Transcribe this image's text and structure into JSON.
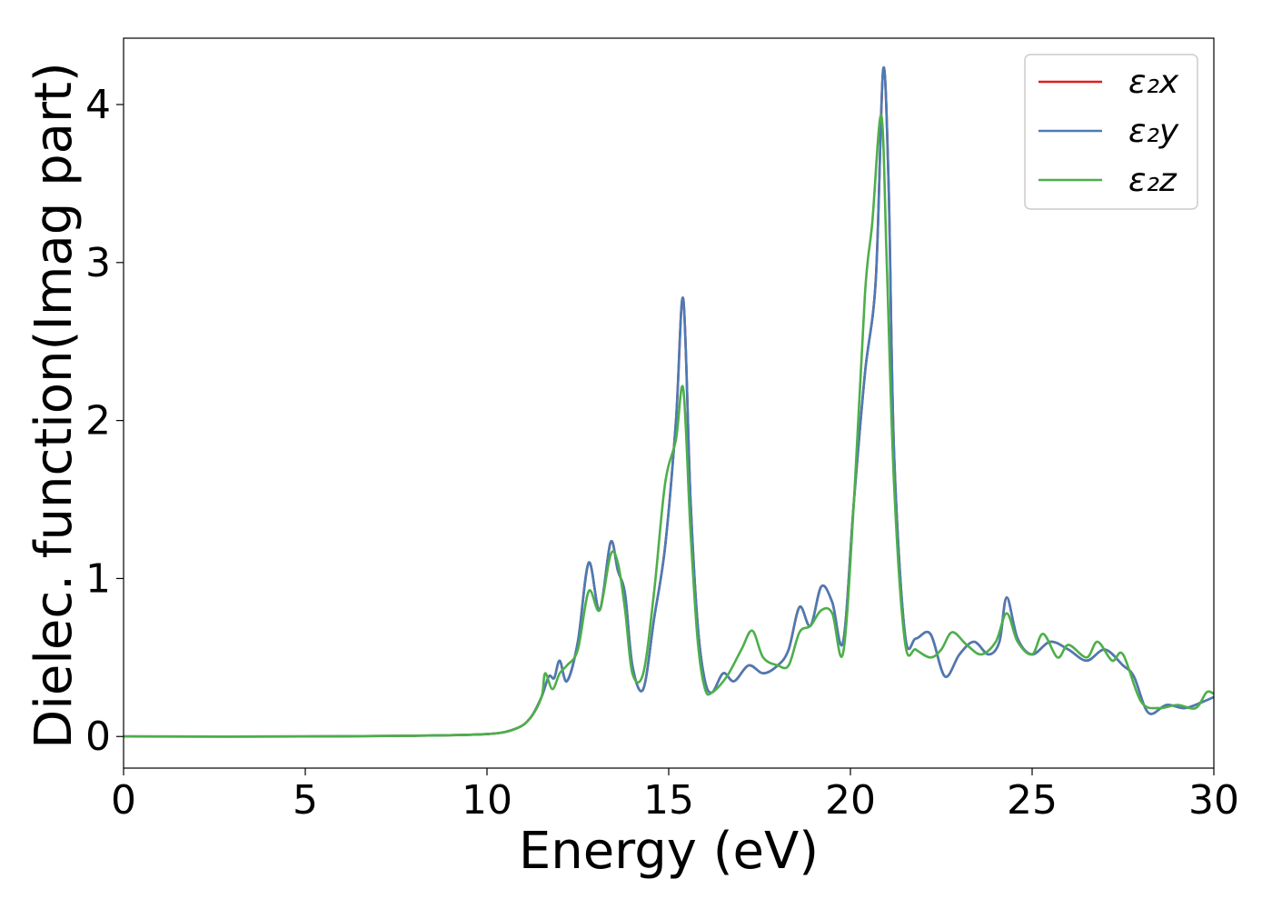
{
  "chart_data": {
    "type": "line",
    "xlabel": "Energy (eV)",
    "ylabel": "Dielec. function(Imag part)",
    "xlim": [
      0,
      30
    ],
    "ylim": [
      -0.2,
      4.42
    ],
    "xticks": [
      0,
      5,
      10,
      15,
      20,
      25,
      30
    ],
    "yticks": [
      0,
      1,
      2,
      3,
      4
    ],
    "grid": false,
    "legend": "top-right",
    "series": [
      {
        "name": "ε₂x",
        "color": "#e41a1c",
        "x": [
          0,
          5,
          8,
          10,
          10.8,
          11.2,
          11.5,
          11.7,
          11.85,
          12.0,
          12.2,
          12.5,
          12.8,
          13.1,
          13.4,
          13.6,
          13.8,
          14.0,
          14.3,
          14.6,
          14.9,
          15.2,
          15.4,
          15.6,
          15.8,
          16.0,
          16.2,
          16.5,
          16.8,
          17.2,
          17.6,
          18.0,
          18.3,
          18.6,
          18.9,
          19.2,
          19.5,
          19.8,
          20.1,
          20.4,
          20.7,
          20.9,
          21.05,
          21.2,
          21.5,
          21.8,
          22.2,
          22.6,
          23.0,
          23.4,
          23.8,
          24.1,
          24.3,
          24.6,
          25.0,
          25.5,
          26.0,
          26.5,
          27.0,
          27.5,
          27.8,
          28.2,
          28.7,
          29.2,
          29.7,
          30
        ],
        "values": [
          0.0,
          0.0,
          0.005,
          0.015,
          0.05,
          0.12,
          0.25,
          0.38,
          0.37,
          0.48,
          0.35,
          0.6,
          1.1,
          0.8,
          1.23,
          1.05,
          0.9,
          0.45,
          0.3,
          0.75,
          1.2,
          2.0,
          2.77,
          1.5,
          0.7,
          0.35,
          0.28,
          0.4,
          0.35,
          0.45,
          0.4,
          0.45,
          0.55,
          0.82,
          0.7,
          0.95,
          0.85,
          0.6,
          1.5,
          2.3,
          2.9,
          4.22,
          3.5,
          1.8,
          0.65,
          0.62,
          0.65,
          0.38,
          0.52,
          0.6,
          0.52,
          0.6,
          0.88,
          0.62,
          0.52,
          0.6,
          0.55,
          0.48,
          0.55,
          0.45,
          0.38,
          0.15,
          0.2,
          0.18,
          0.22,
          0.25
        ]
      },
      {
        "name": "ε₂y",
        "color": "#4a7bb5",
        "x": [
          0,
          5,
          8,
          10,
          10.8,
          11.2,
          11.5,
          11.7,
          11.85,
          12.0,
          12.2,
          12.5,
          12.8,
          13.1,
          13.4,
          13.6,
          13.8,
          14.0,
          14.3,
          14.6,
          14.9,
          15.2,
          15.4,
          15.6,
          15.8,
          16.0,
          16.2,
          16.5,
          16.8,
          17.2,
          17.6,
          18.0,
          18.3,
          18.6,
          18.9,
          19.2,
          19.5,
          19.8,
          20.1,
          20.4,
          20.7,
          20.9,
          21.05,
          21.2,
          21.5,
          21.8,
          22.2,
          22.6,
          23.0,
          23.4,
          23.8,
          24.1,
          24.3,
          24.6,
          25.0,
          25.5,
          26.0,
          26.5,
          27.0,
          27.5,
          27.8,
          28.2,
          28.7,
          29.2,
          29.7,
          30
        ],
        "values": [
          0.0,
          0.0,
          0.005,
          0.015,
          0.05,
          0.12,
          0.25,
          0.38,
          0.37,
          0.48,
          0.35,
          0.6,
          1.1,
          0.8,
          1.23,
          1.05,
          0.9,
          0.45,
          0.3,
          0.75,
          1.2,
          2.0,
          2.77,
          1.5,
          0.7,
          0.35,
          0.28,
          0.4,
          0.35,
          0.45,
          0.4,
          0.45,
          0.55,
          0.82,
          0.7,
          0.95,
          0.85,
          0.6,
          1.5,
          2.3,
          2.9,
          4.22,
          3.5,
          1.8,
          0.65,
          0.62,
          0.65,
          0.38,
          0.52,
          0.6,
          0.52,
          0.6,
          0.88,
          0.62,
          0.52,
          0.6,
          0.55,
          0.48,
          0.55,
          0.45,
          0.38,
          0.15,
          0.2,
          0.18,
          0.22,
          0.25
        ]
      },
      {
        "name": "ε₂z",
        "color": "#4daf4a",
        "x": [
          0,
          5,
          8,
          10,
          10.8,
          11.2,
          11.5,
          11.6,
          11.8,
          12.0,
          12.2,
          12.5,
          12.8,
          13.1,
          13.4,
          13.6,
          13.8,
          14.0,
          14.3,
          14.6,
          14.9,
          15.2,
          15.4,
          15.6,
          15.8,
          16.0,
          16.2,
          16.6,
          17.0,
          17.3,
          17.6,
          18.0,
          18.3,
          18.6,
          18.9,
          19.2,
          19.5,
          19.8,
          20.1,
          20.4,
          20.6,
          20.85,
          21.0,
          21.2,
          21.5,
          21.8,
          22.2,
          22.5,
          22.8,
          23.2,
          23.6,
          24.0,
          24.3,
          24.6,
          25.0,
          25.3,
          25.7,
          26.0,
          26.5,
          26.8,
          27.2,
          27.5,
          28.0,
          28.5,
          29.0,
          29.5,
          29.8,
          30
        ],
        "values": [
          0.0,
          0.0,
          0.005,
          0.015,
          0.05,
          0.12,
          0.25,
          0.4,
          0.3,
          0.4,
          0.45,
          0.55,
          0.92,
          0.8,
          1.15,
          1.1,
          0.8,
          0.4,
          0.4,
          0.92,
          1.6,
          1.88,
          2.2,
          1.3,
          0.6,
          0.3,
          0.28,
          0.38,
          0.55,
          0.67,
          0.5,
          0.45,
          0.45,
          0.66,
          0.7,
          0.8,
          0.78,
          0.53,
          1.5,
          2.8,
          3.25,
          3.93,
          3.0,
          1.6,
          0.6,
          0.55,
          0.5,
          0.55,
          0.66,
          0.58,
          0.52,
          0.6,
          0.78,
          0.6,
          0.52,
          0.65,
          0.5,
          0.58,
          0.5,
          0.6,
          0.48,
          0.52,
          0.22,
          0.18,
          0.2,
          0.18,
          0.28,
          0.27
        ]
      }
    ]
  }
}
